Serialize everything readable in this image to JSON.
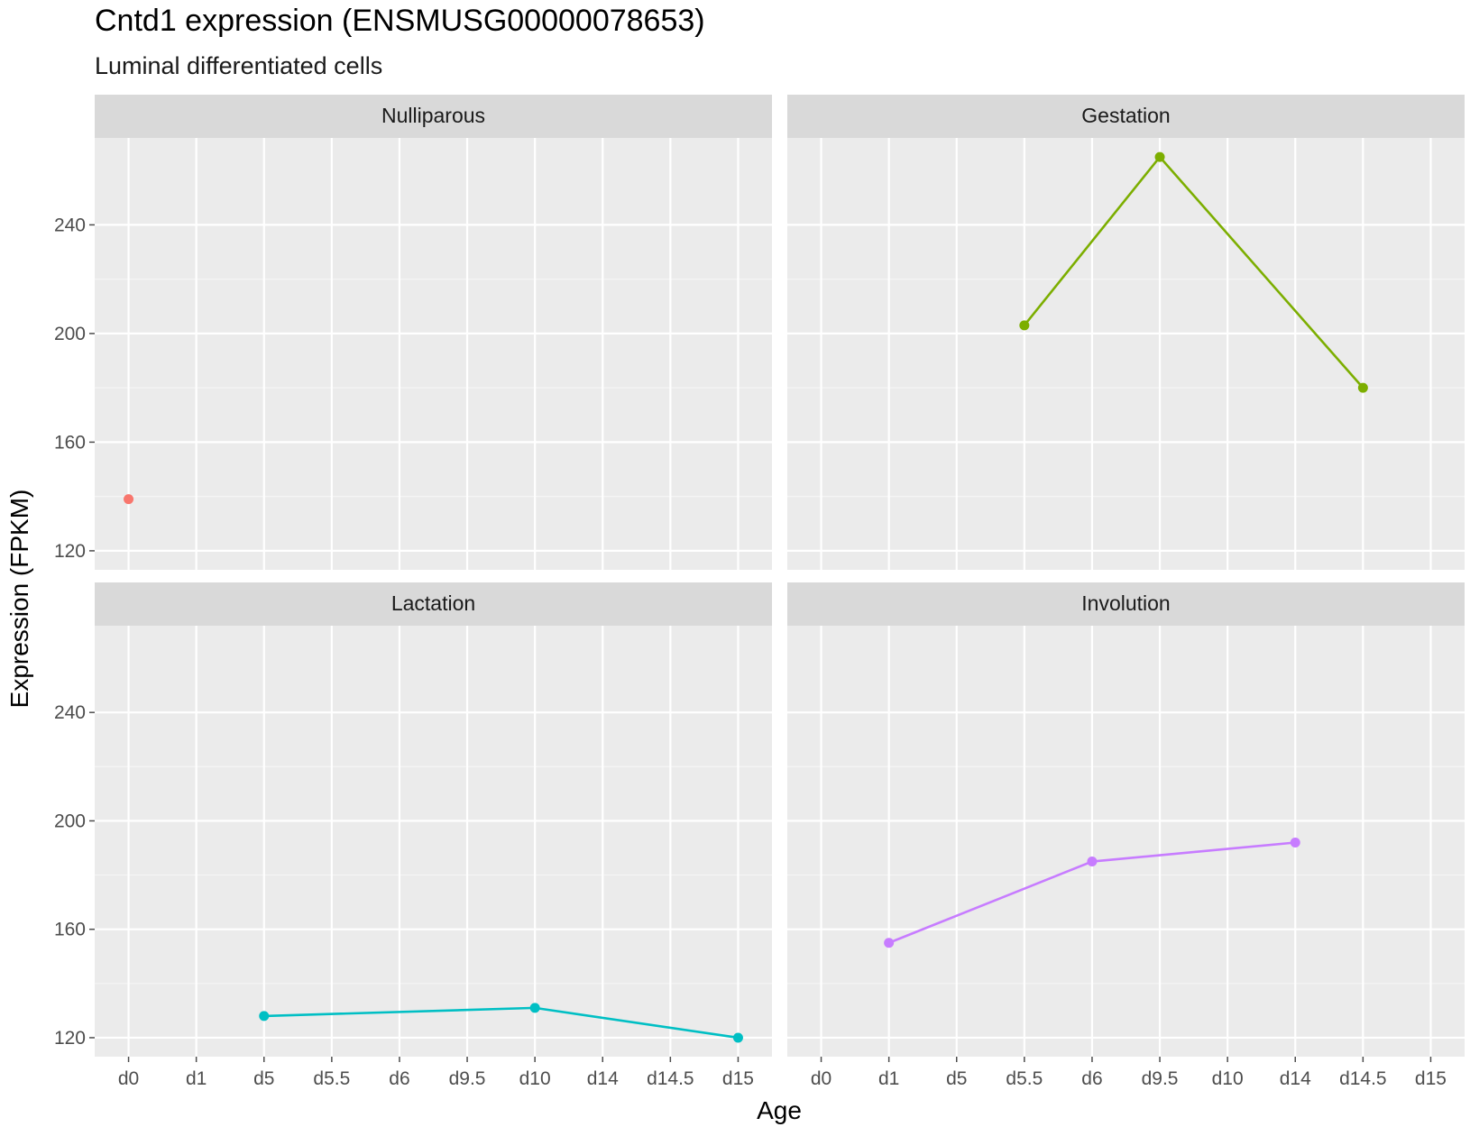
{
  "chart_data": {
    "type": "line",
    "title": "Cntd1 expression (ENSMUSG00000078653)",
    "subtitle": "Luminal differentiated cells",
    "xlabel": "Age",
    "ylabel": "Expression (FPKM)",
    "categories": [
      "d0",
      "d1",
      "d5",
      "d5.5",
      "d6",
      "d9.5",
      "d10",
      "d14",
      "d14.5",
      "d15"
    ],
    "y_ticks": [
      120,
      160,
      200,
      240
    ],
    "ylim": [
      113,
      272
    ],
    "grid": true,
    "legend": "none",
    "facets": [
      {
        "name": "Nulliparous",
        "color": "#F8766D",
        "points": [
          {
            "x": "d0",
            "y": 139
          }
        ]
      },
      {
        "name": "Gestation",
        "color": "#7CAE00",
        "points": [
          {
            "x": "d5.5",
            "y": 203
          },
          {
            "x": "d9.5",
            "y": 265
          },
          {
            "x": "d14.5",
            "y": 180
          }
        ]
      },
      {
        "name": "Lactation",
        "color": "#00BFC4",
        "points": [
          {
            "x": "d5",
            "y": 128
          },
          {
            "x": "d10",
            "y": 131
          },
          {
            "x": "d15",
            "y": 120
          }
        ]
      },
      {
        "name": "Involution",
        "color": "#C77CFF",
        "points": [
          {
            "x": "d1",
            "y": 155
          },
          {
            "x": "d6",
            "y": 185
          },
          {
            "x": "d14",
            "y": 192
          }
        ]
      }
    ]
  }
}
